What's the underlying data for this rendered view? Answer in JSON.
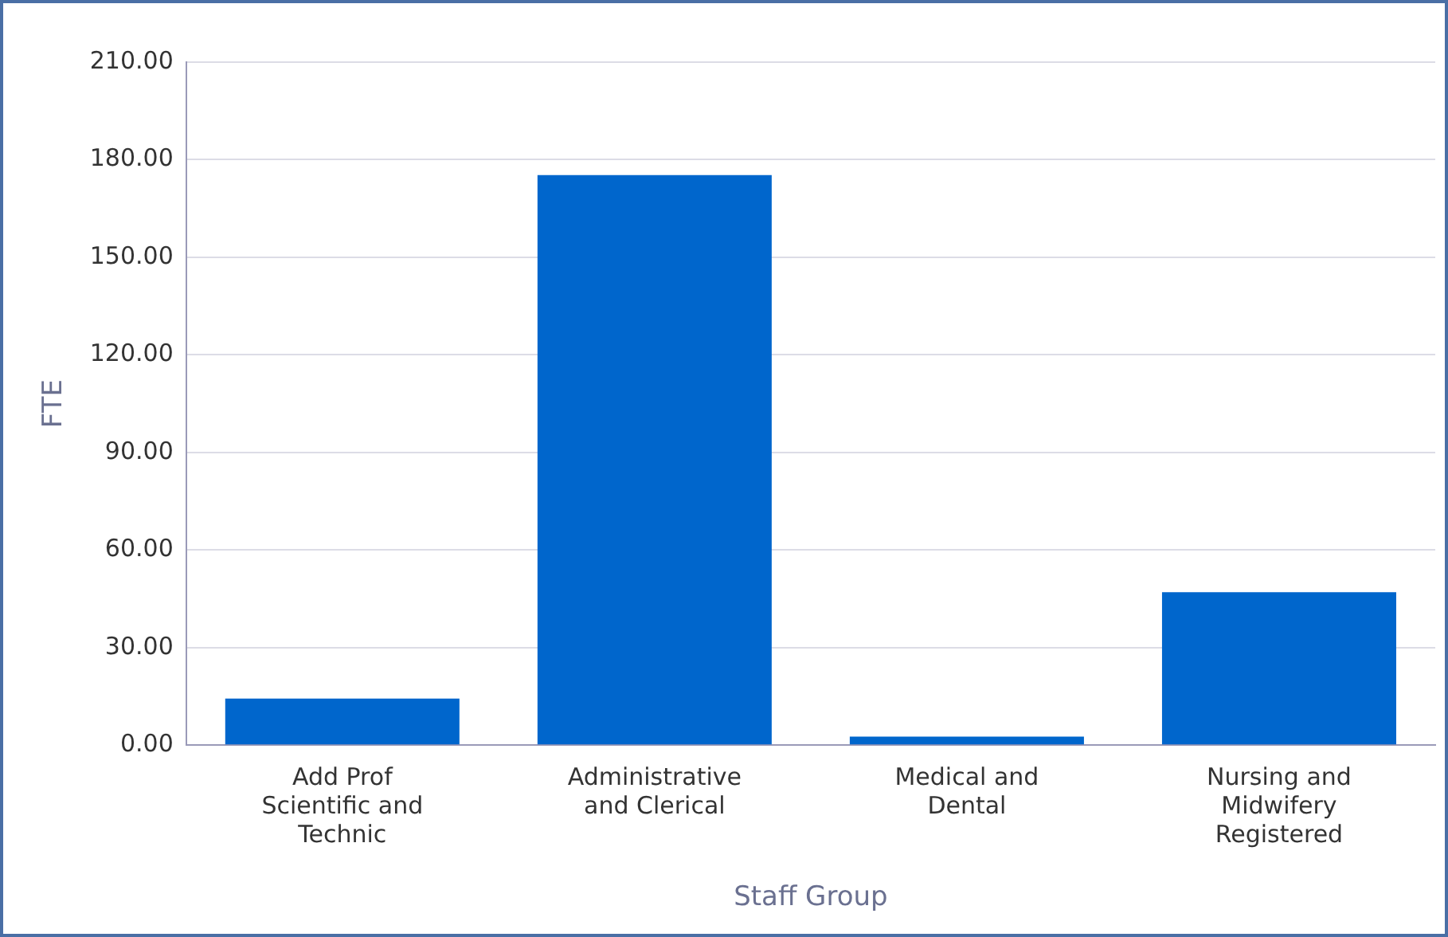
{
  "chart_data": {
    "type": "bar",
    "xlabel": "Staff Group",
    "ylabel": "FTE",
    "categories": [
      "Add Prof Scientific and Technic",
      "Administrative and Clerical",
      "Medical and Dental",
      "Nursing and Midwifery Registered"
    ],
    "values": [
      14.3,
      175.3,
      2.6,
      47
    ],
    "color": "#0066cc",
    "ylim": [
      0,
      210
    ],
    "yticks": [
      {
        "value": 0,
        "label": "0.00"
      },
      {
        "value": 30,
        "label": "30.00"
      },
      {
        "value": 60,
        "label": "60.00"
      },
      {
        "value": 90,
        "label": "90.00"
      },
      {
        "value": 120,
        "label": "120.00"
      },
      {
        "value": 150,
        "label": "150.00"
      },
      {
        "value": 180,
        "label": "180.00"
      },
      {
        "value": 210,
        "label": "210.00"
      }
    ],
    "grid": "y"
  }
}
